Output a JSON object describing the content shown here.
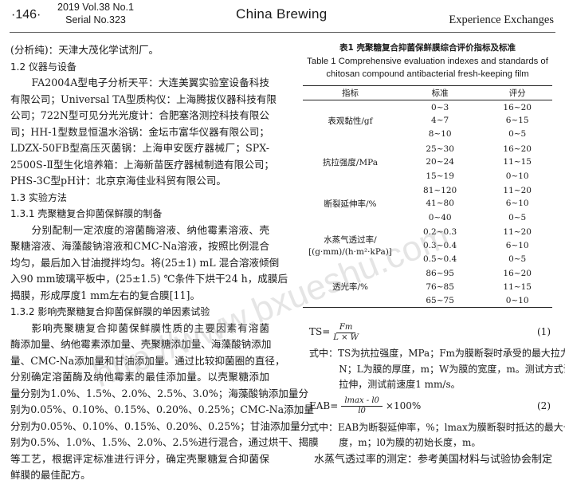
{
  "header": {
    "page": "·146·",
    "volume": "2019 Vol.38 No.1",
    "serial": "Serial No.323",
    "journal": "China Brewing",
    "section": "Experience Exchanges"
  },
  "left": {
    "p0": [
      "(分析纯)：天津大茂化学试剂厂。"
    ],
    "h12": "1.2  仪器与设备",
    "p1": [
      "FA2004A型电子分析天平：大连美翼实验室设备科技",
      "有限公司；Universal TA型质构仪：上海腾拔仪器科技有限",
      "公司；722N型可见分光光度计：合肥塞洛测控科技有限公",
      "司；HH-1型数显恒温水浴锅：金坛市富华仪器有限公司；",
      "LDZX-50FB型高压灭菌锅：上海申安医疗器械厂；SPX-",
      "2500S-Ⅱ型生化培养箱：上海新苗医疗器械制造有限公司；",
      "PHS-3C型pH计：北京京海佳业科贸有限公司。"
    ],
    "h13": "1.3  实验方法",
    "h131": "1.3.1  壳聚糖复合抑菌保鲜膜的制备",
    "p2": [
      "分别配制一定浓度的溶菌酶溶液、纳他霉素溶液、壳",
      "聚糖溶液、海藻酸钠溶液和CMC-Na溶液，按照比例混合",
      "均匀，最后加入甘油搅拌均匀。将(25±1) mL 混合溶液倾倒",
      "入90 mm玻璃平板中，(25±1.5) ℃条件下烘干24 h，成膜后",
      "揭膜，形成厚度1 mm左右的复合膜[11]。"
    ],
    "h132": "1.3.2  影响壳聚糖复合抑菌保鲜膜的单因素试验",
    "p3": [
      "影响壳聚糖复合抑菌保鲜膜性质的主要因素有溶菌",
      "酶添加量、纳他霉素添加量、壳聚糖添加量、海藻酸钠添加",
      "量、CMC-Na添加量和甘油添加量。通过比较抑菌圈的直径，",
      "分别确定溶菌酶及纳他霉素的最佳添加量。以壳聚糖添加",
      "量分别为1.0%、1.5%、2.0%、2.5%、3.0%；海藻酸钠添加量分",
      "别为0.05%、0.10%、0.15%、0.20%、0.25%；CMC-Na添加量",
      "分别为0.05%、0.10%、0.15%、0.20%、0.25%；甘油添加量分",
      "别为0.5%、1.0%、1.5%、2.0%、2.5%进行混合，通过烘干、揭膜",
      "等工艺，根据评定标准进行评分，确定壳聚糖复合抑菌保",
      "鲜膜的最佳配方。"
    ]
  },
  "table": {
    "title_cn": "表1   壳聚糖复合抑菌保鲜膜综合评价指标及标准",
    "title_en1": "Table 1 Comprehensive evaluation indexes and standards of",
    "title_en2": "chitosan compound antibacterial fresh-keeping film",
    "headers": [
      "指标",
      "标准",
      "评分"
    ],
    "groups": [
      {
        "index": "表观黏性/gf",
        "rows": [
          [
            "0~3",
            "16~20"
          ],
          [
            "4~7",
            "6~15"
          ],
          [
            "8~10",
            "0~5"
          ]
        ]
      },
      {
        "index": "抗拉强度/MPa",
        "rows": [
          [
            "25~30",
            "16~20"
          ],
          [
            "20~24",
            "11~15"
          ],
          [
            "15~19",
            "0~10"
          ]
        ]
      },
      {
        "index": "断裂延伸率/%",
        "rows": [
          [
            "81~120",
            "11~20"
          ],
          [
            "41~80",
            "6~10"
          ],
          [
            "0~40",
            "0~5"
          ]
        ]
      },
      {
        "index": "水蒸气透过率/\n[(g·mm)/(h·m²·kPa)]",
        "rows": [
          [
            "0.2~0.3",
            "11~20"
          ],
          [
            "0.3~0.4",
            "6~10"
          ],
          [
            "0.5~0.4",
            "0~5"
          ]
        ]
      },
      {
        "index": "透光率/%",
        "rows": [
          [
            "86~95",
            "16~20"
          ],
          [
            "76~85",
            "11~15"
          ],
          [
            "65~75",
            "0~10"
          ]
        ]
      }
    ]
  },
  "right": {
    "f1_lhs": "TS=",
    "f1_num": "Fm",
    "f1_den": "L × W",
    "f1_no": "(1)",
    "w1": [
      "式中：TS为抗拉强度，MPa；Fm为膜断裂时承受的最大拉力，",
      "N；L为膜的厚度，m；W为膜的宽度，m。测试方式设为",
      "拉伸，测试前速度1 mm/s。"
    ],
    "f2_lhs": "EAB=",
    "f2_num": "lmax - l0",
    "f2_den": "l0",
    "f2_tail": "×100%",
    "f2_no": "(2)",
    "w2": [
      "式中：EAB为断裂延伸率，%；lmax为膜断裂时抵达的最大长",
      "度，m；l0为膜的初始长度，m。"
    ],
    "last": "水蒸气透过率的测定：参考美国材料与试验协会制定"
  },
  "watermark": "http://www.bxueshu.com"
}
